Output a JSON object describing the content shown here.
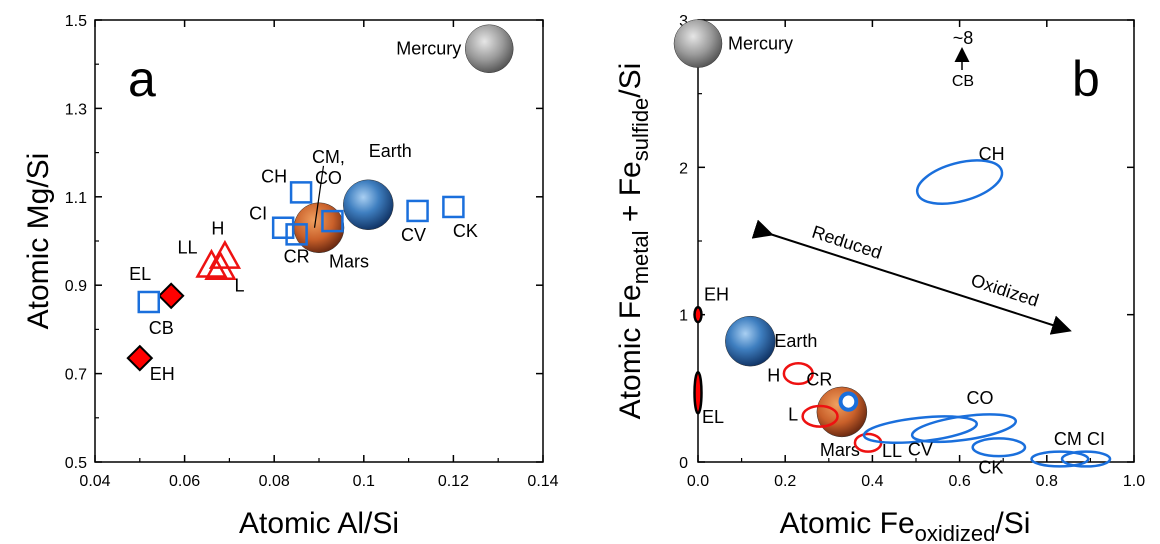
{
  "chart_data": [
    {
      "panel_label": "a",
      "type": "scatter",
      "xlabel": "Atomic Al/Si",
      "ylabel": "Atomic Mg/Si",
      "xlim": [
        0.04,
        0.14
      ],
      "ylim": [
        0.5,
        1.5
      ],
      "xticks": [
        "0.04",
        "0.06",
        "0.08",
        "0.1",
        "0.12",
        "0.14"
      ],
      "yticks": [
        "0.5",
        "0.7",
        "0.9",
        "1.1",
        "1.3",
        "1.5"
      ],
      "colors": {
        "enstatite": "#ff0000",
        "ordinary": "#ee1111",
        "carbonaceous": "#1a6fdc"
      },
      "series": [
        {
          "group": "enstatite",
          "marker": "diamond-filled",
          "points": [
            {
              "label": "EH",
              "x": 0.05,
              "y": 0.735
            },
            {
              "label": "EL",
              "x": 0.057,
              "y": 0.876
            }
          ]
        },
        {
          "group": "ordinary",
          "marker": "triangle-open",
          "points": [
            {
              "label": "LL",
              "x": 0.066,
              "y": 0.945
            },
            {
              "label": "H",
              "x": 0.069,
              "y": 0.965
            },
            {
              "label": "L",
              "x": 0.068,
              "y": 0.94
            }
          ]
        },
        {
          "group": "carbonaceous",
          "marker": "square-open",
          "points": [
            {
              "label": "CB",
              "x": 0.052,
              "y": 0.862
            },
            {
              "label": "CI",
              "x": 0.082,
              "y": 1.03
            },
            {
              "label": "CR",
              "x": 0.085,
              "y": 1.015
            },
            {
              "label": "CH",
              "x": 0.086,
              "y": 1.11
            },
            {
              "label": "CM, CO",
              "x": 0.093,
              "y": 1.045
            },
            {
              "label": "CV",
              "x": 0.112,
              "y": 1.068
            },
            {
              "label": "CK",
              "x": 0.12,
              "y": 1.077
            }
          ]
        }
      ],
      "planets": [
        {
          "name": "Mercury",
          "x": 0.128,
          "y": 1.435,
          "icon": "mercury-icon"
        },
        {
          "name": "Earth",
          "x": 0.101,
          "y": 1.082,
          "icon": "earth-icon"
        },
        {
          "name": "Mars",
          "x": 0.09,
          "y": 1.03,
          "icon": "mars-icon"
        }
      ]
    },
    {
      "panel_label": "b",
      "type": "scatter",
      "xlabel": "Atomic Fe<sub>oxidized</sub>/Si",
      "xlabel_parts": [
        "Atomic Fe",
        "oxidized",
        "/Si"
      ],
      "ylabel_parts": [
        "Atomic Fe",
        "metal",
        " + Fe",
        "sulfide",
        "/Si"
      ],
      "xlim": [
        0,
        1.0
      ],
      "ylim": [
        0,
        3
      ],
      "xticks": [
        "0.0",
        "0.2",
        "0.4",
        "0.6",
        "0.8",
        "1.0"
      ],
      "yticks": [
        "0",
        "1",
        "2",
        "3"
      ],
      "ellipses": [
        {
          "label": "EH",
          "color": "#ff0000",
          "filled": true,
          "x": 0.0,
          "y": 1.0,
          "rx": 0.008,
          "ry": 0.05
        },
        {
          "label": "EL",
          "color": "#ff0000",
          "filled": true,
          "x": 0.0,
          "y": 0.47,
          "rx": 0.008,
          "ry": 0.14
        },
        {
          "label": "H",
          "color": "#ee1111",
          "filled": false,
          "x": 0.23,
          "y": 0.6,
          "rx": 0.033,
          "ry": 0.07
        },
        {
          "label": "L",
          "color": "#ee1111",
          "filled": false,
          "x": 0.28,
          "y": 0.31,
          "rx": 0.04,
          "ry": 0.07
        },
        {
          "label": "LL",
          "color": "#ee1111",
          "filled": false,
          "x": 0.39,
          "y": 0.13,
          "rx": 0.03,
          "ry": 0.06
        },
        {
          "label": "CH",
          "color": "#1a6fdc",
          "filled": false,
          "x": 0.6,
          "y": 1.9,
          "rx": 0.1,
          "ry": 0.13,
          "rot": 15
        },
        {
          "label": "CV",
          "color": "#1a6fdc",
          "filled": false,
          "x": 0.51,
          "y": 0.22,
          "rx": 0.13,
          "ry": 0.08,
          "rot": 6
        },
        {
          "label": "CO",
          "color": "#1a6fdc",
          "filled": false,
          "x": 0.61,
          "y": 0.23,
          "rx": 0.12,
          "ry": 0.08,
          "rot": 8
        },
        {
          "label": "CK",
          "color": "#1a6fdc",
          "filled": false,
          "x": 0.69,
          "y": 0.1,
          "rx": 0.06,
          "ry": 0.06
        },
        {
          "label": "CM",
          "color": "#1a6fdc",
          "filled": false,
          "x": 0.83,
          "y": 0.02,
          "rx": 0.065,
          "ry": 0.05
        },
        {
          "label": "CI",
          "color": "#1a6fdc",
          "filled": false,
          "x": 0.89,
          "y": 0.02,
          "rx": 0.055,
          "ry": 0.05
        },
        {
          "label": "CR",
          "color": "#1a6fdc",
          "filled": true,
          "x": 0.345,
          "y": 0.41,
          "rx": 0.018,
          "ry": 0.055
        }
      ],
      "planets": [
        {
          "name": "Mercury",
          "x": 0.0,
          "y": 2.84,
          "icon": "mercury-icon"
        },
        {
          "name": "Earth",
          "x": 0.12,
          "y": 0.82,
          "icon": "earth-icon"
        },
        {
          "name": "Mars",
          "x": 0.33,
          "y": 0.34,
          "icon": "mars-icon"
        }
      ],
      "annotations": {
        "arrow_label_left": "Reduced",
        "arrow_label_right": "Oxidized",
        "offscale_value": "~8",
        "offscale_label": "CB"
      }
    }
  ]
}
